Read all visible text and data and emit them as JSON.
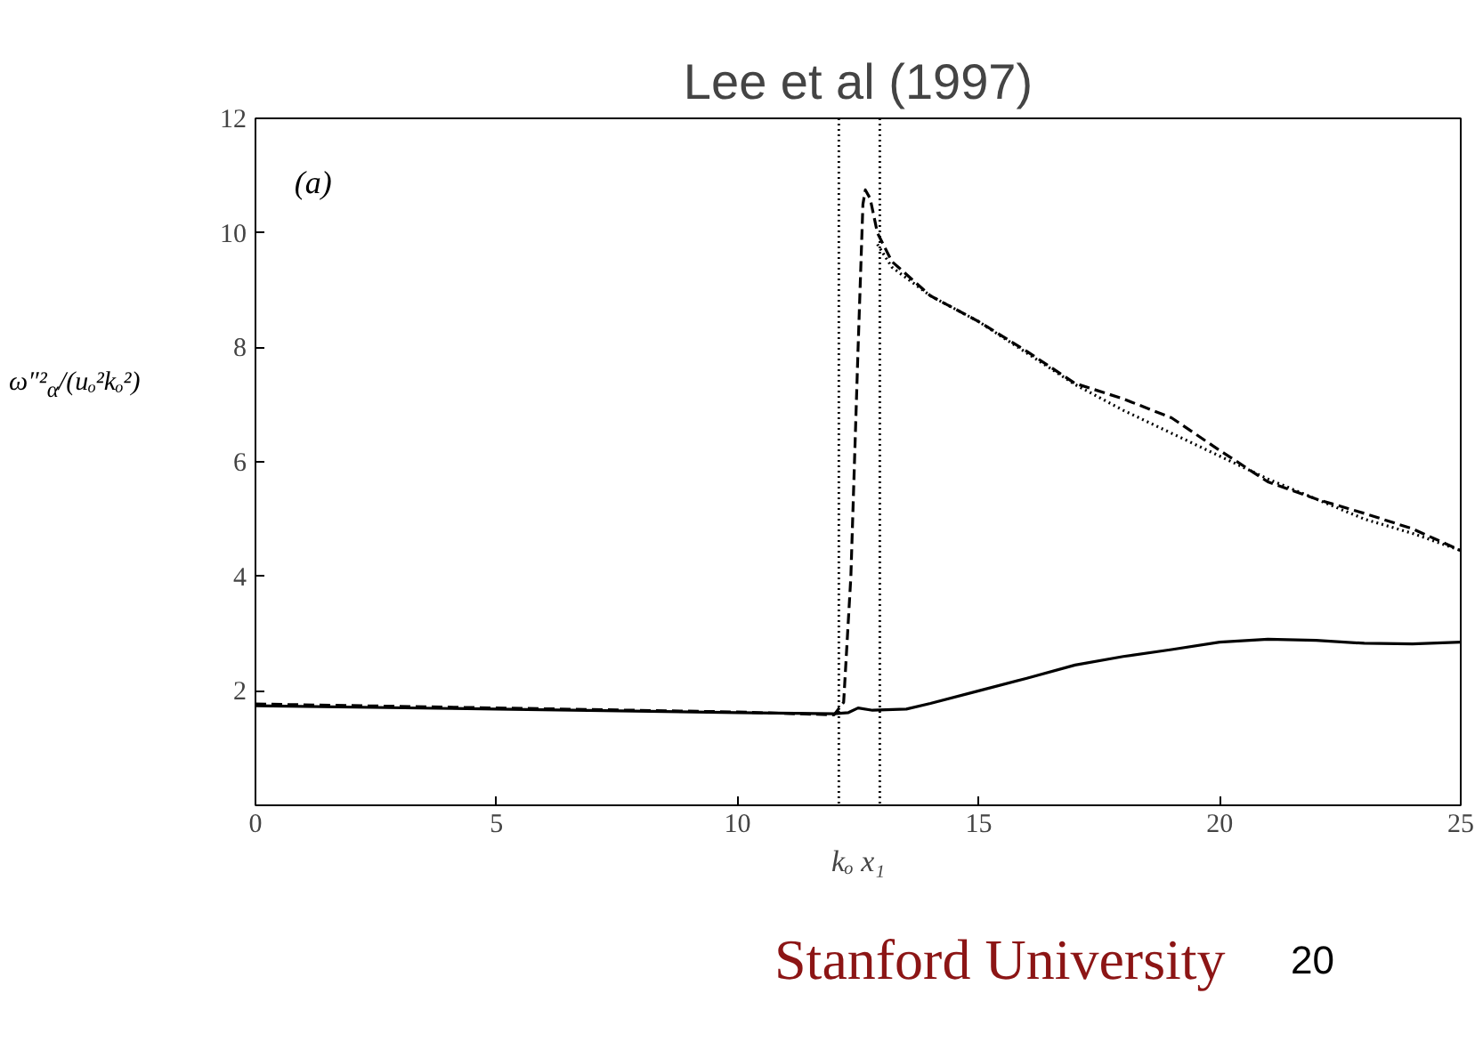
{
  "chart_data": {
    "type": "line",
    "title": "Lee et al (1997)",
    "xlabel": "kₒ x₁",
    "ylabel": "ω″²$_{α}$/(uₒ²kₒ²)",
    "xlim": [
      0,
      25
    ],
    "ylim": [
      0,
      12
    ],
    "xticks": [
      0,
      5,
      10,
      15,
      20,
      25
    ],
    "yticks": [
      {
        "value": 0,
        "label": null
      },
      2,
      4,
      6,
      8,
      10,
      12
    ],
    "grid": false,
    "marker": "none",
    "series": [
      {
        "color": "#000000",
        "line_style": "solid",
        "x": [
          0,
          5,
          10,
          12,
          12.3,
          12.5,
          12.8,
          13.5,
          14,
          15,
          16,
          17,
          18,
          19,
          20,
          21,
          22,
          23,
          24,
          25
        ],
        "values": [
          1.74,
          1.68,
          1.62,
          1.6,
          1.62,
          1.7,
          1.66,
          1.68,
          1.78,
          2.0,
          2.22,
          2.45,
          2.6,
          2.72,
          2.85,
          2.9,
          2.88,
          2.83,
          2.82,
          2.85
        ]
      },
      {
        "color": "#000000",
        "line_style": "dashed",
        "x": [
          0,
          5,
          10,
          12,
          12.2,
          12.35,
          12.5,
          12.6,
          12.65,
          12.75,
          12.9,
          13.2,
          14,
          15,
          16,
          17,
          18,
          19,
          20,
          21,
          22,
          23,
          24,
          25
        ],
        "values": [
          1.77,
          1.7,
          1.63,
          1.58,
          1.8,
          4,
          8,
          10.5,
          10.75,
          10.6,
          10.0,
          9.5,
          8.9,
          8.45,
          7.93,
          7.37,
          7.1,
          6.77,
          6.2,
          5.65,
          5.35,
          5.1,
          4.83,
          4.45
        ]
      },
      {
        "color": "#000000",
        "line_style": "dotted",
        "x": [
          12.9,
          13.2,
          14,
          15,
          16,
          17,
          18,
          19,
          20,
          21,
          22,
          23,
          24,
          25
        ],
        "values": [
          9.8,
          9.4,
          8.9,
          8.45,
          7.9,
          7.35,
          6.9,
          6.5,
          6.1,
          5.7,
          5.35,
          5.0,
          4.75,
          4.45
        ]
      }
    ],
    "ref_lines": [
      {
        "axis": "x",
        "value": 12.1,
        "color": "#000000",
        "line_style": "dotted"
      },
      {
        "axis": "x",
        "value": 12.95,
        "color": "#000000",
        "line_style": "dotted"
      }
    ],
    "annotations": [
      "(a)",
      "Stanford University",
      "20"
    ]
  }
}
